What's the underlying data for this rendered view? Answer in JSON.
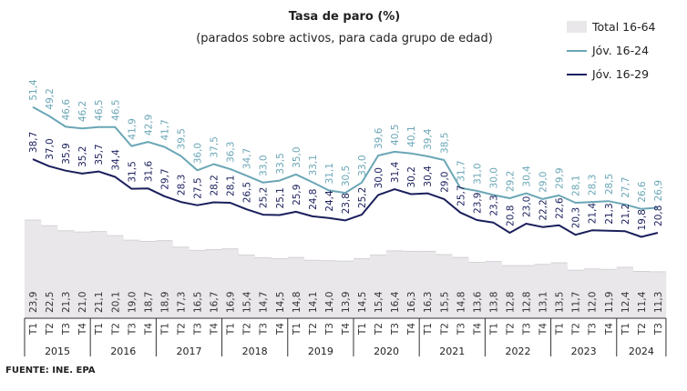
{
  "chart_data": {
    "type": "bar-line",
    "title": "Tasa de paro (%)",
    "subtitle": "(parados sobre activos, para cada grupo de edad)",
    "source": "FUENTE: INE. EPA",
    "categories": [
      "T1",
      "T2",
      "T3",
      "T4",
      "T1",
      "T2",
      "T3",
      "T4",
      "T1",
      "T2",
      "T3",
      "T4",
      "T1",
      "T2",
      "T3",
      "T4",
      "T1",
      "T2",
      "T3",
      "T4",
      "T1",
      "T2",
      "T3",
      "T4",
      "T1",
      "T2",
      "T3",
      "T4",
      "T1",
      "T2",
      "T3",
      "T4",
      "T1",
      "T2",
      "T3",
      "T4",
      "T1",
      "T2",
      "T3"
    ],
    "groups": [
      "2015",
      "2016",
      "2017",
      "2018",
      "2019",
      "2020",
      "2021",
      "2022",
      "2023",
      "2024"
    ],
    "ylim": [
      0,
      60
    ],
    "series": [
      {
        "name": "Total 16-64",
        "type": "bar",
        "color": "#e9e7ea",
        "values": [
          23.9,
          22.5,
          21.3,
          21.0,
          21.1,
          20.1,
          19.0,
          18.7,
          18.9,
          17.3,
          16.5,
          16.7,
          16.9,
          15.4,
          14.7,
          14.5,
          14.8,
          14.1,
          14.0,
          13.9,
          14.5,
          15.4,
          16.4,
          16.3,
          16.3,
          15.5,
          14.8,
          13.6,
          13.8,
          12.8,
          12.8,
          13.1,
          13.5,
          11.7,
          12.0,
          11.9,
          12.4,
          11.4,
          11.3
        ],
        "value_labels": [
          "23,9",
          "22,5",
          "21,3",
          "21,0",
          "21,1",
          "20,1",
          "19,0",
          "18,7",
          "18,9",
          "17,3",
          "16,5",
          "16,7",
          "16,9",
          "15,4",
          "14,7",
          "14,5",
          "14,8",
          "14,1",
          "14,0",
          "13,9",
          "14,5",
          "15,4",
          "16,4",
          "16,3",
          "16,3",
          "15,5",
          "14,8",
          "13,6",
          "13,8",
          "12,8",
          "12,8",
          "13,1",
          "13,5",
          "11,7",
          "12,0",
          "11,9",
          "12,4",
          "11,4",
          "11,3"
        ]
      },
      {
        "name": "Jóv. 16-24",
        "type": "line",
        "color": "#6aa6b6",
        "values": [
          51.4,
          49.2,
          46.6,
          46.2,
          46.5,
          46.5,
          41.9,
          42.9,
          41.7,
          39.5,
          36.0,
          37.5,
          36.3,
          34.7,
          33.0,
          33.5,
          35.0,
          33.1,
          31.1,
          30.5,
          33.0,
          39.6,
          40.5,
          40.1,
          39.4,
          38.5,
          31.7,
          31.0,
          30.0,
          29.2,
          30.4,
          29.0,
          29.9,
          28.1,
          28.3,
          28.5,
          27.7,
          26.6,
          26.9
        ],
        "value_labels": [
          "51,4",
          "49,2",
          "46,6",
          "46,2",
          "46,5",
          "46,5",
          "41,9",
          "42,9",
          "41,7",
          "39,5",
          "36,0",
          "37,5",
          "36,3",
          "34,7",
          "33,0",
          "33,5",
          "35,0",
          "33,1",
          "31,1",
          "30,5",
          "33,0",
          "39,6",
          "40,5",
          "40,1",
          "39,4",
          "38,5",
          "31,7",
          "31,0",
          "30,0",
          "29,2",
          "30,4",
          "29,0",
          "29,9",
          "28,1",
          "28,3",
          "28,5",
          "27,7",
          "26,6",
          "26,9"
        ]
      },
      {
        "name": "Jóv. 16-29",
        "type": "line",
        "color": "#1b1f5c",
        "values": [
          38.7,
          37.0,
          35.9,
          35.2,
          35.7,
          34.4,
          31.5,
          31.6,
          29.7,
          28.3,
          27.5,
          28.2,
          28.1,
          26.5,
          25.2,
          25.1,
          25.9,
          24.8,
          24.4,
          23.8,
          25.2,
          30.0,
          31.4,
          30.2,
          30.4,
          29.0,
          25.7,
          23.9,
          23.3,
          20.8,
          23.0,
          22.2,
          22.6,
          20.3,
          21.4,
          21.3,
          21.2,
          19.8,
          20.8
        ],
        "value_labels": [
          "38,7",
          "37,0",
          "35,9",
          "35,2",
          "35,7",
          "34,4",
          "31,5",
          "31,6",
          "29,7",
          "28,3",
          "27,5",
          "28,2",
          "28,1",
          "26,5",
          "25,2",
          "25,1",
          "25,9",
          "24,8",
          "24,4",
          "23,8",
          "25,2",
          "30,0",
          "31,4",
          "30,2",
          "30,4",
          "29,0",
          "25,7",
          "23,9",
          "23,3",
          "20,8",
          "23,0",
          "22,2",
          "22,6",
          "20,3",
          "21,4",
          "21,3",
          "21,2",
          "19,8",
          "20,8"
        ]
      }
    ]
  }
}
